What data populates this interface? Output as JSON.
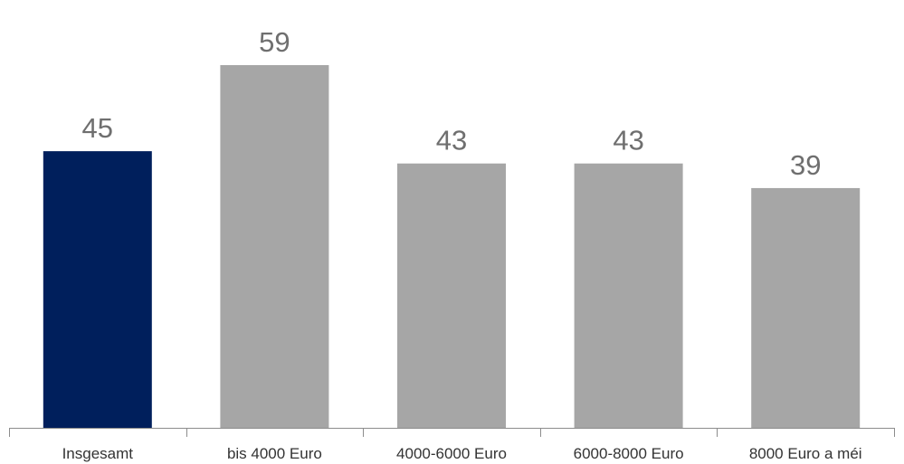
{
  "chart_data": {
    "type": "bar",
    "title": "",
    "xlabel": "",
    "ylabel": "",
    "categories": [
      "Insgesamt",
      "bis 4000 Euro",
      "4000-6000 Euro",
      "6000-8000 Euro",
      "8000 Euro a méi"
    ],
    "values": [
      45,
      59,
      43,
      43,
      39
    ],
    "ylim": [
      0,
      65
    ],
    "grid": false,
    "legend": "none",
    "bar_colors": [
      "#001f5c",
      "#a6a6a6",
      "#a6a6a6",
      "#a6a6a6",
      "#a6a6a6"
    ],
    "value_label_color": "#6f6f6f",
    "axis_color": "#8c8c8c"
  }
}
